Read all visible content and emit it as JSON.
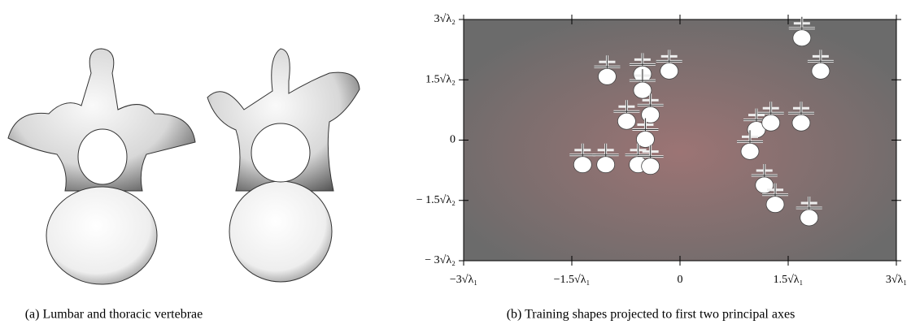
{
  "captions": [
    "(a)  Lumbar and thoracic vertebrae",
    "(b)  Training shapes projected to first two principal axes"
  ],
  "chart_data": {
    "type": "scatter",
    "x": [
      -1.01,
      -0.52,
      -0.15,
      -0.52,
      -0.74,
      -0.41,
      -0.48,
      -1.35,
      -1.03,
      -0.58,
      -0.41,
      1.69,
      1.95,
      1.06,
      1.26,
      1.68,
      0.97,
      1.17,
      1.32,
      1.79
    ],
    "values": [
      1.58,
      1.64,
      1.72,
      1.24,
      0.47,
      0.63,
      0.02,
      -0.61,
      -0.61,
      -0.61,
      -0.65,
      2.54,
      1.72,
      0.26,
      0.43,
      0.43,
      -0.28,
      -1.12,
      -1.6,
      -1.93
    ],
    "xlim": [
      -3,
      3
    ],
    "ylim": [
      -3,
      3
    ],
    "xticks": [
      {
        "value": -3,
        "label": "−3√λ₁"
      },
      {
        "value": -1.5,
        "label": "−1.5√λ₁"
      },
      0,
      {
        "value": 1.5,
        "label": "1.5√λ₁"
      },
      {
        "value": 3,
        "label": "3√λ₁"
      }
    ],
    "yticks": [
      {
        "value": 3,
        "label": "3√λ₂"
      },
      {
        "value": 1.5,
        "label": "1.5√λ₂"
      },
      0,
      {
        "value": -1.5,
        "label": "− 1.5√λ₂"
      },
      {
        "value": -3,
        "label": "− 3√λ₂"
      }
    ]
  }
}
